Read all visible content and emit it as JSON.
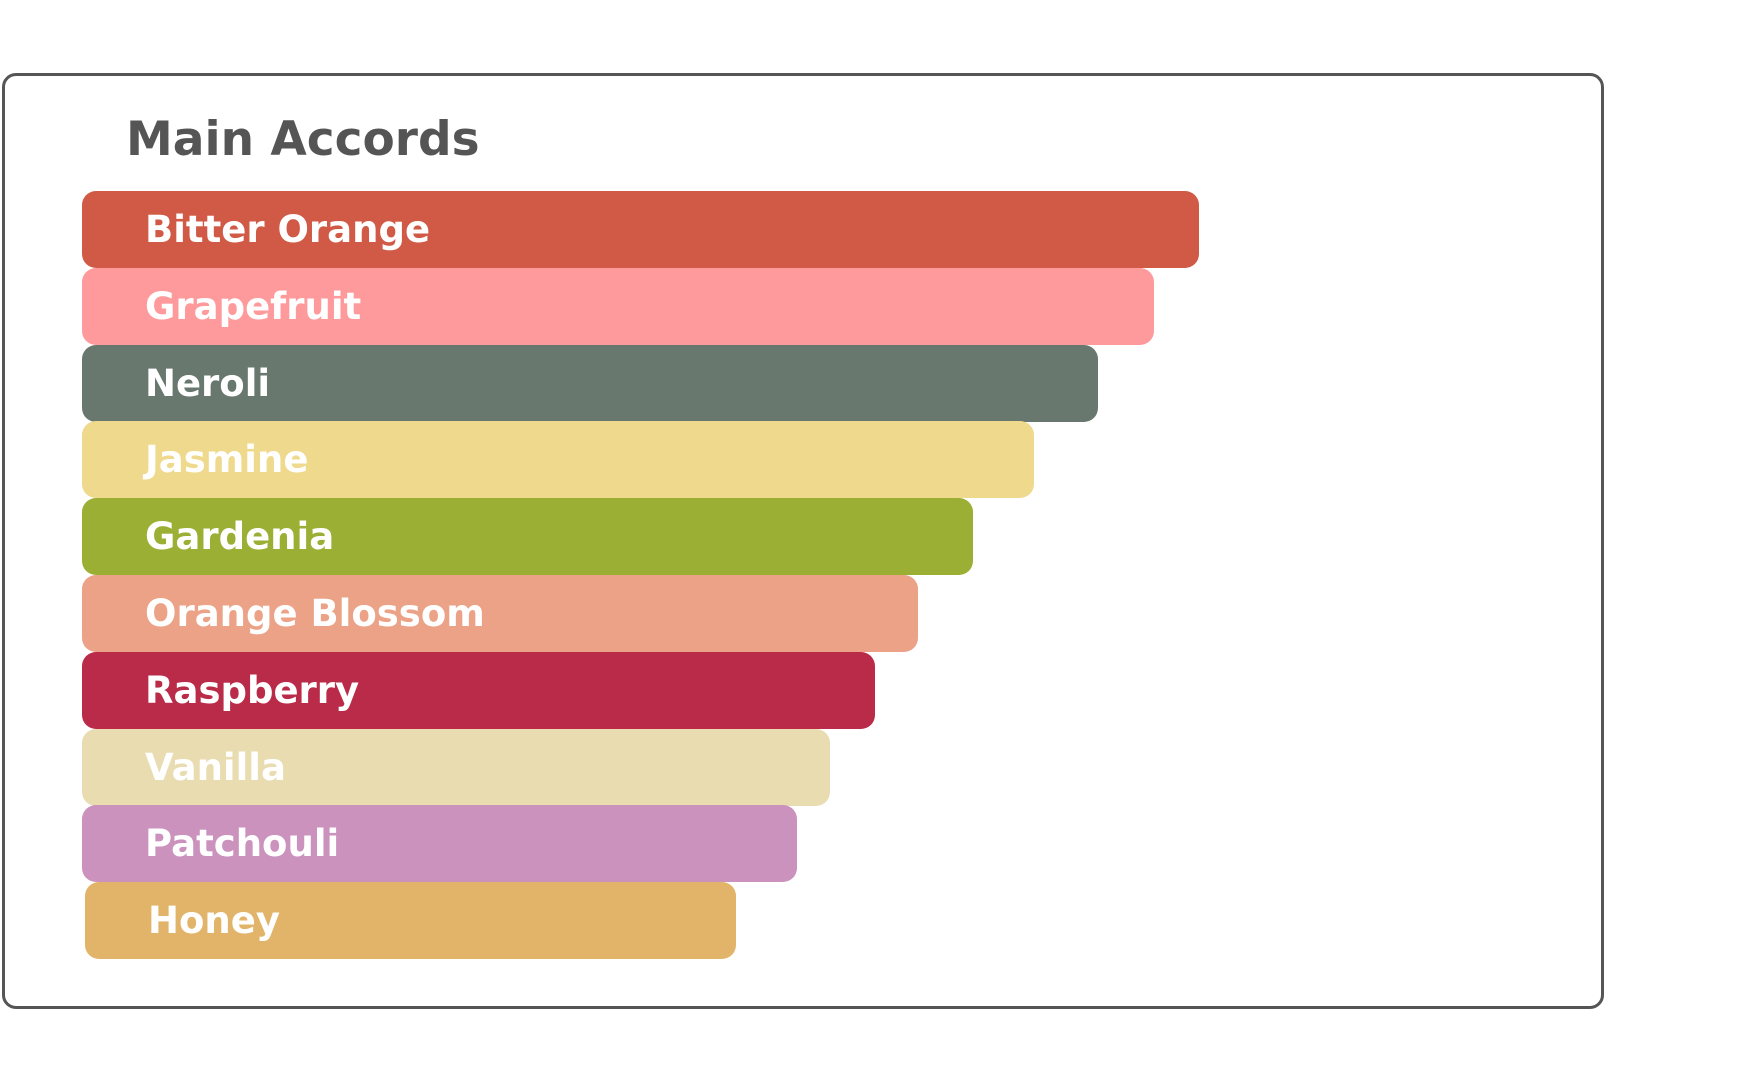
{
  "chart_data": {
    "type": "bar",
    "orientation": "horizontal",
    "title": "Main Accords",
    "categories": [
      "Bitter Orange",
      "Grapefruit",
      "Neroli",
      "Jasmine",
      "Gardenia",
      "Orange Blossom",
      "Raspberry",
      "Vanilla",
      "Patchouli",
      "Honey"
    ],
    "values": [
      100,
      96,
      91,
      85.2,
      79.8,
      74.8,
      71,
      67,
      64,
      58.3
    ],
    "colors": [
      "#d05a45",
      "#ff9a9c",
      "#68786e",
      "#eed98c",
      "#9caf35",
      "#eba286",
      "#b92b48",
      "#e8dcb0",
      "#cb92bd",
      "#e1b46a"
    ],
    "xlim": [
      0,
      100
    ],
    "grid": false,
    "legend": "none"
  }
}
